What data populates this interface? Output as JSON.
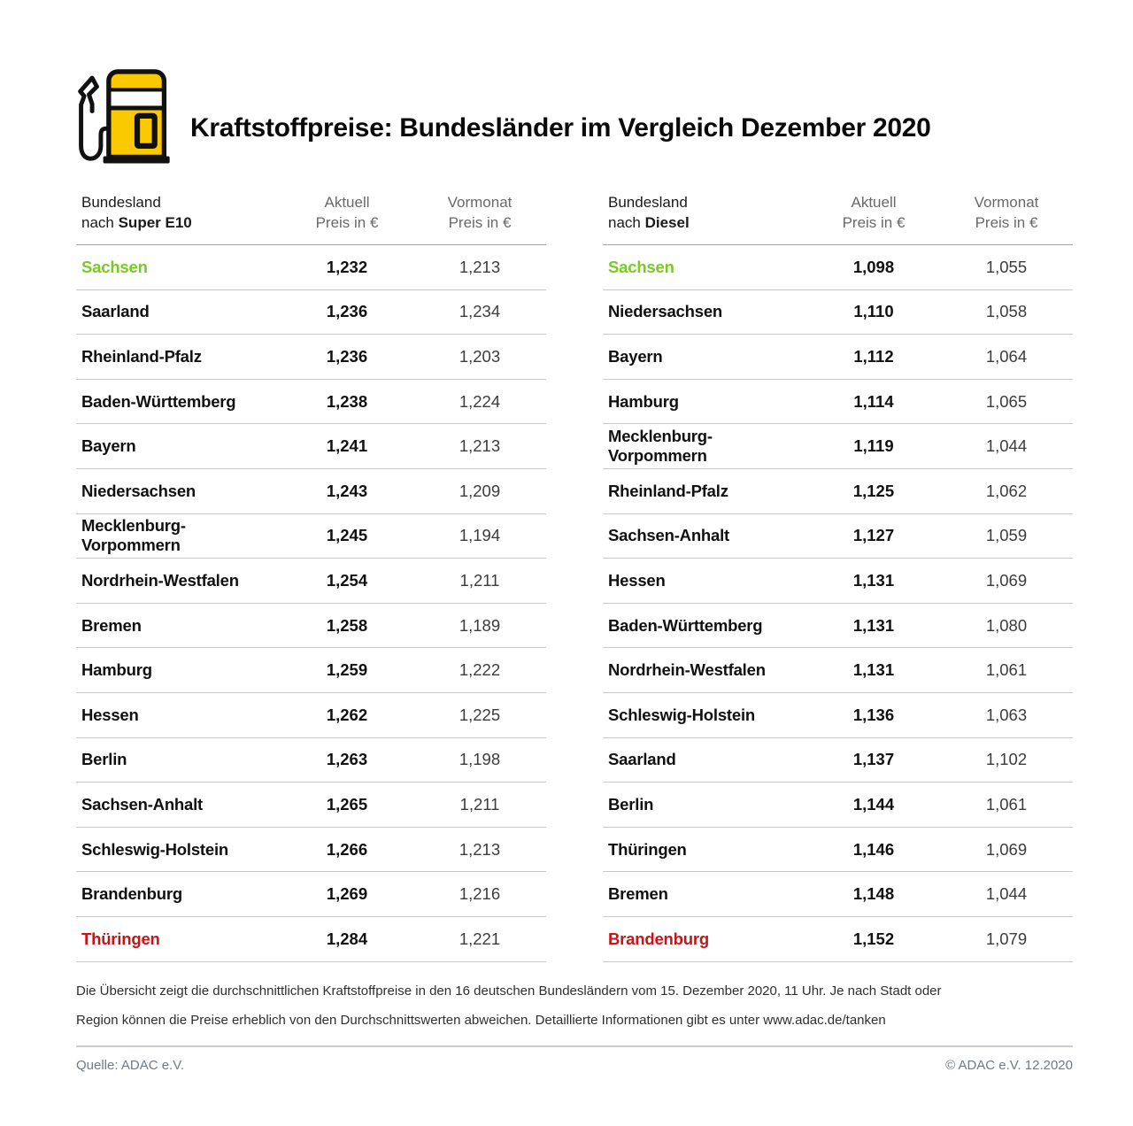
{
  "header": {
    "title": "Kraftstoffpreise: Bundesländer im Vergleich Dezember 2020",
    "icon": "fuel-pump-icon"
  },
  "tables": [
    {
      "label_line1": "Bundesland",
      "label_prefix": "nach ",
      "fuel": "Super E10",
      "col_aktuell_line1": "Aktuell",
      "col_aktuell_line2": "Preis in €",
      "col_vormonat_line1": "Vormonat",
      "col_vormonat_line2": "Preis in €",
      "rows": [
        {
          "name": "Sachsen",
          "aktuell": "1,232",
          "vormonat": "1,213",
          "color": "green"
        },
        {
          "name": "Saarland",
          "aktuell": "1,236",
          "vormonat": "1,234",
          "color": null
        },
        {
          "name": "Rheinland-Pfalz",
          "aktuell": "1,236",
          "vormonat": "1,203",
          "color": null
        },
        {
          "name": "Baden-Württemberg",
          "aktuell": "1,238",
          "vormonat": "1,224",
          "color": null
        },
        {
          "name": "Bayern",
          "aktuell": "1,241",
          "vormonat": "1,213",
          "color": null
        },
        {
          "name": "Niedersachsen",
          "aktuell": "1,243",
          "vormonat": "1,209",
          "color": null
        },
        {
          "name": "Mecklenburg-Vorpommern",
          "aktuell": "1,245",
          "vormonat": "1,194",
          "color": null
        },
        {
          "name": "Nordrhein-Westfalen",
          "aktuell": "1,254",
          "vormonat": "1,211",
          "color": null
        },
        {
          "name": "Bremen",
          "aktuell": "1,258",
          "vormonat": "1,189",
          "color": null
        },
        {
          "name": "Hamburg",
          "aktuell": "1,259",
          "vormonat": "1,222",
          "color": null
        },
        {
          "name": "Hessen",
          "aktuell": "1,262",
          "vormonat": "1,225",
          "color": null
        },
        {
          "name": "Berlin",
          "aktuell": "1,263",
          "vormonat": "1,198",
          "color": null
        },
        {
          "name": "Sachsen-Anhalt",
          "aktuell": "1,265",
          "vormonat": "1,211",
          "color": null
        },
        {
          "name": "Schleswig-Holstein",
          "aktuell": "1,266",
          "vormonat": "1,213",
          "color": null
        },
        {
          "name": "Brandenburg",
          "aktuell": "1,269",
          "vormonat": "1,216",
          "color": null
        },
        {
          "name": "Thüringen",
          "aktuell": "1,284",
          "vormonat": "1,221",
          "color": "red"
        }
      ]
    },
    {
      "label_line1": "Bundesland",
      "label_prefix": "nach ",
      "fuel": "Diesel",
      "col_aktuell_line1": "Aktuell",
      "col_aktuell_line2": "Preis in €",
      "col_vormonat_line1": "Vormonat",
      "col_vormonat_line2": "Preis in €",
      "rows": [
        {
          "name": "Sachsen",
          "aktuell": "1,098",
          "vormonat": "1,055",
          "color": "green"
        },
        {
          "name": "Niedersachsen",
          "aktuell": "1,110",
          "vormonat": "1,058",
          "color": null
        },
        {
          "name": "Bayern",
          "aktuell": "1,112",
          "vormonat": "1,064",
          "color": null
        },
        {
          "name": "Hamburg",
          "aktuell": "1,114",
          "vormonat": "1,065",
          "color": null
        },
        {
          "name": "Mecklenburg-Vorpommern",
          "aktuell": "1,119",
          "vormonat": "1,044",
          "color": null
        },
        {
          "name": "Rheinland-Pfalz",
          "aktuell": "1,125",
          "vormonat": "1,062",
          "color": null
        },
        {
          "name": "Sachsen-Anhalt",
          "aktuell": "1,127",
          "vormonat": "1,059",
          "color": null
        },
        {
          "name": "Hessen",
          "aktuell": "1,131",
          "vormonat": "1,069",
          "color": null
        },
        {
          "name": "Baden-Württemberg",
          "aktuell": "1,131",
          "vormonat": "1,080",
          "color": null
        },
        {
          "name": "Nordrhein-Westfalen",
          "aktuell": "1,131",
          "vormonat": "1,061",
          "color": null
        },
        {
          "name": "Schleswig-Holstein",
          "aktuell": "1,136",
          "vormonat": "1,063",
          "color": null
        },
        {
          "name": "Saarland",
          "aktuell": "1,137",
          "vormonat": "1,102",
          "color": null
        },
        {
          "name": "Berlin",
          "aktuell": "1,144",
          "vormonat": "1,061",
          "color": null
        },
        {
          "name": "Thüringen",
          "aktuell": "1,146",
          "vormonat": "1,069",
          "color": null
        },
        {
          "name": "Bremen",
          "aktuell": "1,148",
          "vormonat": "1,044",
          "color": null
        },
        {
          "name": "Brandenburg",
          "aktuell": "1,152",
          "vormonat": "1,079",
          "color": "red"
        }
      ]
    }
  ],
  "footnote": "Die Übersicht zeigt die durchschnittlichen Kraftstoffpreise in den 16 deutschen Bundesländern vom 15. Dezember 2020, 11 Uhr. Je nach Stadt oder Region können die Preise erheblich von den Durchschnittswerten abweichen. Detaillierte Informationen gibt es unter www.adac.de/tanken",
  "footer": {
    "source": "Quelle: ADAC e.V.",
    "copyright": "© ADAC e.V. 12.2020"
  },
  "colors": {
    "brand_yellow": "#FBC900",
    "highlight_green": "#77CB22",
    "highlight_red": "#C81419",
    "footer_gray": "#6E7A85"
  },
  "chart_data": [
    {
      "type": "table",
      "title": "Bundesland nach Super E10",
      "columns": [
        "Bundesland",
        "Aktuell Preis in €",
        "Vormonat Preis in €"
      ],
      "rows": [
        [
          "Sachsen",
          1.232,
          1.213
        ],
        [
          "Saarland",
          1.236,
          1.234
        ],
        [
          "Rheinland-Pfalz",
          1.236,
          1.203
        ],
        [
          "Baden-Württemberg",
          1.238,
          1.224
        ],
        [
          "Bayern",
          1.241,
          1.213
        ],
        [
          "Niedersachsen",
          1.243,
          1.209
        ],
        [
          "Mecklenburg-Vorpommern",
          1.245,
          1.194
        ],
        [
          "Nordrhein-Westfalen",
          1.254,
          1.211
        ],
        [
          "Bremen",
          1.258,
          1.189
        ],
        [
          "Hamburg",
          1.259,
          1.222
        ],
        [
          "Hessen",
          1.262,
          1.225
        ],
        [
          "Berlin",
          1.263,
          1.198
        ],
        [
          "Sachsen-Anhalt",
          1.265,
          1.211
        ],
        [
          "Schleswig-Holstein",
          1.266,
          1.213
        ],
        [
          "Brandenburg",
          1.269,
          1.216
        ],
        [
          "Thüringen",
          1.284,
          1.221
        ]
      ],
      "notes": "cheapest state (Sachsen) highlighted green, most expensive (Thüringen) highlighted red"
    },
    {
      "type": "table",
      "title": "Bundesland nach Diesel",
      "columns": [
        "Bundesland",
        "Aktuell Preis in €",
        "Vormonat Preis in €"
      ],
      "rows": [
        [
          "Sachsen",
          1.098,
          1.055
        ],
        [
          "Niedersachsen",
          1.11,
          1.058
        ],
        [
          "Bayern",
          1.112,
          1.064
        ],
        [
          "Hamburg",
          1.114,
          1.065
        ],
        [
          "Mecklenburg-Vorpommern",
          1.119,
          1.044
        ],
        [
          "Rheinland-Pfalz",
          1.125,
          1.062
        ],
        [
          "Sachsen-Anhalt",
          1.127,
          1.059
        ],
        [
          "Hessen",
          1.131,
          1.069
        ],
        [
          "Baden-Württemberg",
          1.131,
          1.08
        ],
        [
          "Nordrhein-Westfalen",
          1.131,
          1.061
        ],
        [
          "Schleswig-Holstein",
          1.136,
          1.063
        ],
        [
          "Saarland",
          1.137,
          1.102
        ],
        [
          "Berlin",
          1.144,
          1.061
        ],
        [
          "Thüringen",
          1.146,
          1.069
        ],
        [
          "Bremen",
          1.148,
          1.044
        ],
        [
          "Brandenburg",
          1.152,
          1.079
        ]
      ],
      "notes": "cheapest state (Sachsen) highlighted green, most expensive (Brandenburg) highlighted red"
    }
  ]
}
